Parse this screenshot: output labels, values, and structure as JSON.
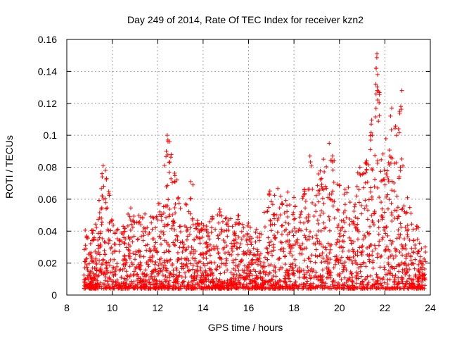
{
  "chart_data": {
    "type": "scatter",
    "title": "Day 249 of 2014, Rate Of TEC Index for receiver kzn2",
    "xlabel": "GPS time / hours",
    "ylabel": "ROTI / TECUs",
    "xlim": [
      8,
      24
    ],
    "ylim": [
      0,
      0.16
    ],
    "x_ticks": [
      "8",
      "10",
      "12",
      "14",
      "16",
      "18",
      "20",
      "22",
      "24"
    ],
    "x_tick_values": [
      8,
      10,
      12,
      14,
      16,
      18,
      20,
      22,
      24
    ],
    "y_ticks": [
      "0",
      "0.02",
      "0.04",
      "0.06",
      "0.08",
      "0.1",
      "0.12",
      "0.14",
      "0.16"
    ],
    "y_tick_values": [
      0,
      0.02,
      0.04,
      0.06,
      0.08,
      0.1,
      0.12,
      0.14,
      0.16
    ],
    "grid": true,
    "marker": "+",
    "color": "#ff0000",
    "x_range_of_data": [
      8.75,
      23.8
    ],
    "envelope": [
      {
        "x": 8.8,
        "y": 0.042
      },
      {
        "x": 9.0,
        "y": 0.04
      },
      {
        "x": 9.3,
        "y": 0.045
      },
      {
        "x": 9.6,
        "y": 0.081
      },
      {
        "x": 9.8,
        "y": 0.075
      },
      {
        "x": 10.0,
        "y": 0.05
      },
      {
        "x": 10.4,
        "y": 0.045
      },
      {
        "x": 10.8,
        "y": 0.055
      },
      {
        "x": 11.2,
        "y": 0.052
      },
      {
        "x": 11.6,
        "y": 0.05
      },
      {
        "x": 12.0,
        "y": 0.055
      },
      {
        "x": 12.4,
        "y": 0.101
      },
      {
        "x": 12.6,
        "y": 0.095
      },
      {
        "x": 12.8,
        "y": 0.072
      },
      {
        "x": 13.1,
        "y": 0.05
      },
      {
        "x": 13.5,
        "y": 0.071
      },
      {
        "x": 13.8,
        "y": 0.045
      },
      {
        "x": 14.2,
        "y": 0.045
      },
      {
        "x": 14.5,
        "y": 0.06
      },
      {
        "x": 14.8,
        "y": 0.052
      },
      {
        "x": 15.2,
        "y": 0.05
      },
      {
        "x": 15.6,
        "y": 0.052
      },
      {
        "x": 16.0,
        "y": 0.045
      },
      {
        "x": 16.5,
        "y": 0.04
      },
      {
        "x": 16.9,
        "y": 0.065
      },
      {
        "x": 17.2,
        "y": 0.068
      },
      {
        "x": 17.6,
        "y": 0.066
      },
      {
        "x": 18.0,
        "y": 0.062
      },
      {
        "x": 18.4,
        "y": 0.07
      },
      {
        "x": 18.7,
        "y": 0.087
      },
      {
        "x": 19.0,
        "y": 0.075
      },
      {
        "x": 19.3,
        "y": 0.085
      },
      {
        "x": 19.6,
        "y": 0.096
      },
      {
        "x": 19.9,
        "y": 0.075
      },
      {
        "x": 20.2,
        "y": 0.07
      },
      {
        "x": 20.5,
        "y": 0.072
      },
      {
        "x": 20.9,
        "y": 0.08
      },
      {
        "x": 21.2,
        "y": 0.085
      },
      {
        "x": 21.4,
        "y": 0.108
      },
      {
        "x": 21.65,
        "y": 0.151
      },
      {
        "x": 21.9,
        "y": 0.1
      },
      {
        "x": 22.1,
        "y": 0.11
      },
      {
        "x": 22.3,
        "y": 0.118
      },
      {
        "x": 22.55,
        "y": 0.105
      },
      {
        "x": 22.75,
        "y": 0.128
      },
      {
        "x": 23.0,
        "y": 0.06
      },
      {
        "x": 23.4,
        "y": 0.045
      },
      {
        "x": 23.8,
        "y": 0.03
      }
    ],
    "outliers": [
      {
        "x": 21.65,
        "y": 0.151
      },
      {
        "x": 21.62,
        "y": 0.142
      },
      {
        "x": 21.68,
        "y": 0.138
      },
      {
        "x": 21.6,
        "y": 0.132
      },
      {
        "x": 21.66,
        "y": 0.128
      },
      {
        "x": 22.75,
        "y": 0.128
      },
      {
        "x": 22.7,
        "y": 0.118
      },
      {
        "x": 22.3,
        "y": 0.117
      },
      {
        "x": 22.25,
        "y": 0.112
      },
      {
        "x": 22.65,
        "y": 0.115
      },
      {
        "x": 22.6,
        "y": 0.104
      },
      {
        "x": 21.4,
        "y": 0.107
      },
      {
        "x": 21.45,
        "y": 0.1
      },
      {
        "x": 12.42,
        "y": 0.1
      },
      {
        "x": 12.45,
        "y": 0.097
      },
      {
        "x": 19.55,
        "y": 0.095
      },
      {
        "x": 12.38,
        "y": 0.09
      },
      {
        "x": 12.6,
        "y": 0.088
      },
      {
        "x": 18.7,
        "y": 0.087
      },
      {
        "x": 19.3,
        "y": 0.085
      },
      {
        "x": 12.5,
        "y": 0.083
      },
      {
        "x": 9.6,
        "y": 0.081
      },
      {
        "x": 9.7,
        "y": 0.078
      },
      {
        "x": 9.55,
        "y": 0.076
      },
      {
        "x": 9.75,
        "y": 0.073
      },
      {
        "x": 12.85,
        "y": 0.072
      },
      {
        "x": 13.45,
        "y": 0.071
      },
      {
        "x": 13.55,
        "y": 0.069
      },
      {
        "x": 20.9,
        "y": 0.08
      },
      {
        "x": 21.2,
        "y": 0.084
      }
    ]
  }
}
